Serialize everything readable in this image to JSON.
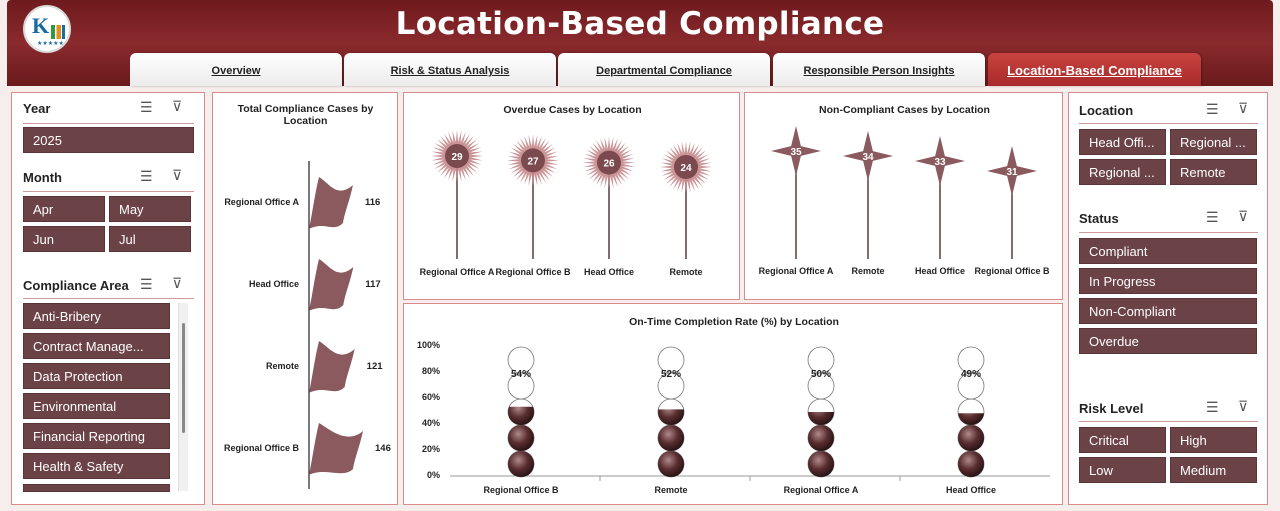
{
  "header": {
    "title": "Location-Based Compliance"
  },
  "tabs": [
    {
      "label": "Overview"
    },
    {
      "label": "Risk & Status Analysis"
    },
    {
      "label": "Departmental Compliance"
    },
    {
      "label": "Responsible Person Insights"
    },
    {
      "label": "Location-Based Compliance"
    }
  ],
  "left_slicers": {
    "year": {
      "title": "Year",
      "items": [
        "2025"
      ]
    },
    "month": {
      "title": "Month",
      "items": [
        "Apr",
        "May",
        "Jun",
        "Jul"
      ]
    },
    "compliance_area": {
      "title": "Compliance Area",
      "items": [
        "Anti-Bribery",
        "Contract Manage...",
        "Data Protection",
        "Environmental",
        "Financial Reporting",
        "Health & Safety"
      ]
    }
  },
  "right_slicers": {
    "location": {
      "title": "Location",
      "items": [
        "Head Offi...",
        "Regional ...",
        "Regional ...",
        "Remote"
      ]
    },
    "status": {
      "title": "Status",
      "items": [
        "Compliant",
        "In Progress",
        "Non-Compliant",
        "Overdue"
      ]
    },
    "risk_level": {
      "title": "Risk Level",
      "items": [
        "Critical",
        "High",
        "Low",
        "Medium"
      ]
    }
  },
  "chart_data": [
    {
      "type": "bar",
      "title": "Total Compliance Cases by Location",
      "categories": [
        "Regional Office A",
        "Head Office",
        "Remote",
        "Regional Office B"
      ],
      "values": [
        116,
        117,
        121,
        146
      ],
      "color": "#8a5a5e"
    },
    {
      "type": "bar",
      "title": "Overdue  Cases  by Location",
      "categories": [
        "Regional Office A",
        "Regional Office B",
        "Head Office",
        "Remote"
      ],
      "values": [
        29,
        27,
        26,
        24
      ],
      "color": "#7a4a4e"
    },
    {
      "type": "bar",
      "title": "Non-Compliant Cases by Location",
      "categories": [
        "Regional Office A",
        "Remote",
        "Head Office",
        "Regional Office B"
      ],
      "values": [
        35,
        34,
        33,
        31
      ],
      "color": "#8a5a5e"
    },
    {
      "type": "bar",
      "title": "On-Time Completion Rate (%) by Location",
      "categories": [
        "Regional Office B",
        "Remote",
        "Regional Office A",
        "Head Office"
      ],
      "values": [
        54,
        52,
        50,
        49
      ],
      "value_labels": [
        "54%",
        "52%",
        "50%",
        "49%"
      ],
      "y_ticks": [
        "100%",
        "80%",
        "60%",
        "40%",
        "20%",
        "0%"
      ],
      "ylim": [
        0,
        100
      ],
      "color": "#5a2e30"
    }
  ]
}
